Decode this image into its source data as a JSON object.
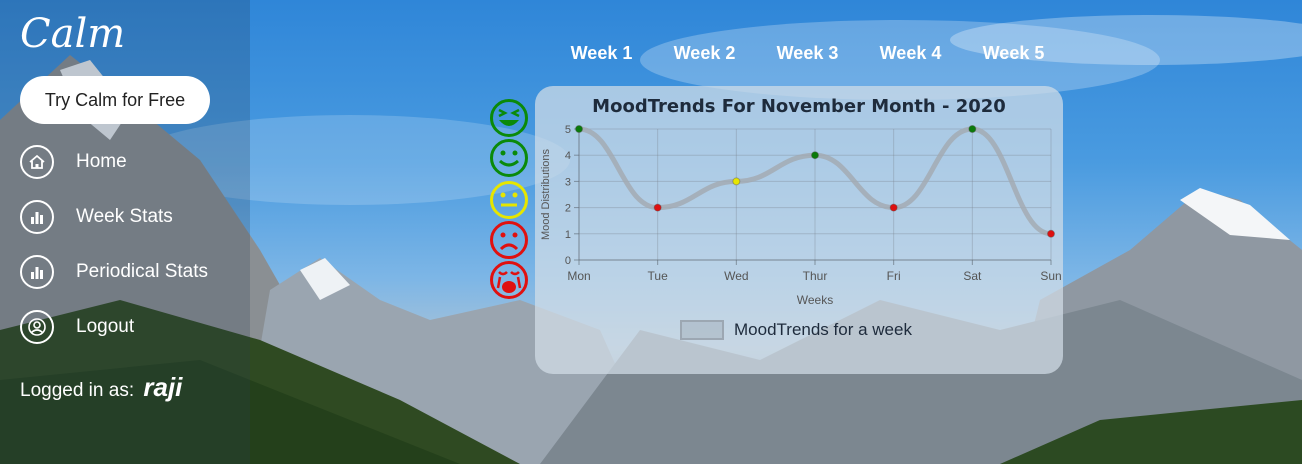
{
  "brand": {
    "logo_text": "Calm",
    "cta_label": "Try Calm for Free"
  },
  "sidebar": {
    "items": [
      {
        "label": "Home",
        "icon": "home-icon"
      },
      {
        "label": "Week Stats",
        "icon": "bar-chart-icon"
      },
      {
        "label": "Periodical Stats",
        "icon": "bar-chart-icon"
      },
      {
        "label": "Logout",
        "icon": "user-circle-icon"
      }
    ],
    "logged_in_label": "Logged in as:",
    "username": "raji"
  },
  "week_tabs": [
    "Week 1",
    "Week 2",
    "Week 3",
    "Week 4",
    "Week 5"
  ],
  "mood_legend": [
    {
      "mood": "very-happy",
      "color": "#0a8a0a"
    },
    {
      "mood": "happy",
      "color": "#0a8a0a"
    },
    {
      "mood": "neutral",
      "color": "#e6e600"
    },
    {
      "mood": "sad",
      "color": "#e01010"
    },
    {
      "mood": "crying",
      "color": "#e01010"
    }
  ],
  "chart_data": {
    "type": "line",
    "title": "MoodTrends For November Month - 2020",
    "xlabel": "Weeks",
    "ylabel": "Mood Distributions",
    "categories": [
      "Mon",
      "Tue",
      "Wed",
      "Thur",
      "Fri",
      "Sat",
      "Sun"
    ],
    "ylim": [
      0,
      5
    ],
    "yticks": [
      0,
      1,
      2,
      3,
      4,
      5
    ],
    "series": [
      {
        "name": "MoodTrends for a week",
        "values": [
          5,
          2,
          3,
          4,
          2,
          5,
          1
        ],
        "point_colors": [
          "#0a7a0a",
          "#dd1010",
          "#e6e600",
          "#0a7a0a",
          "#dd1010",
          "#0a7a0a",
          "#dd1010"
        ],
        "line_color": "#a3a9b0"
      }
    ],
    "grid": true,
    "legend": "bottom"
  }
}
